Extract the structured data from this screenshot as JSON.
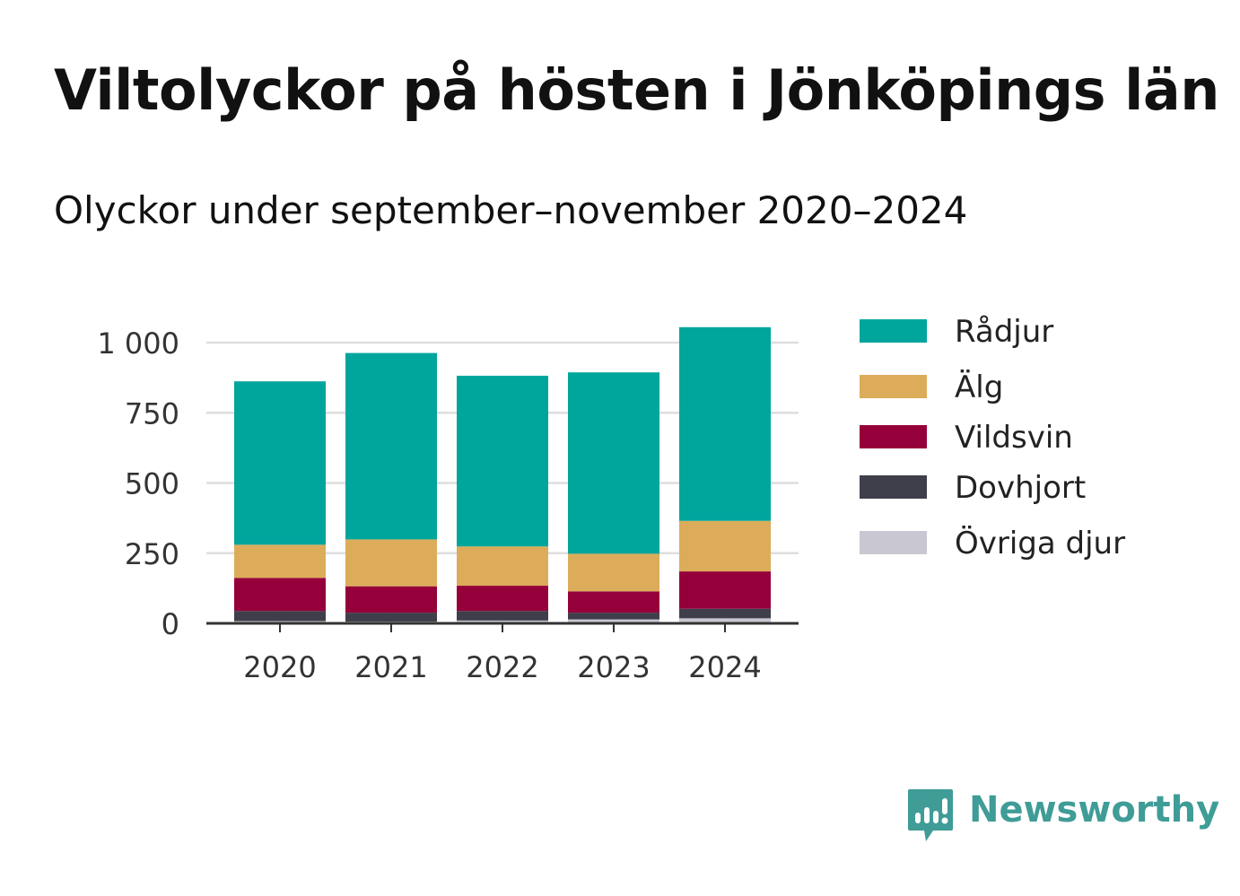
{
  "brand": {
    "name": "Newsworthy",
    "color": "#3f9c97"
  },
  "chart_data": {
    "type": "bar",
    "stacked": true,
    "title": "Viltolyckor på hösten i Jönköpings län",
    "subtitle": "Olyckor under september–november 2020–2024",
    "xlabel": "",
    "ylabel": "",
    "categories": [
      "2020",
      "2021",
      "2022",
      "2023",
      "2024"
    ],
    "ylim": [
      0,
      1000
    ],
    "yticks": [
      0,
      250,
      500,
      750,
      1000
    ],
    "ytick_labels": [
      "0",
      "250",
      "500",
      "750",
      "1 000"
    ],
    "grid": true,
    "legend_position": "right",
    "series": [
      {
        "name": "Övriga djur",
        "color": "#c8c7d2",
        "values": [
          8,
          6,
          10,
          14,
          18
        ]
      },
      {
        "name": "Dovhjort",
        "color": "#3f3f4b",
        "values": [
          36,
          32,
          34,
          24,
          34
        ]
      },
      {
        "name": "Vildsvin",
        "color": "#96003a",
        "values": [
          118,
          94,
          90,
          76,
          133
        ]
      },
      {
        "name": "Älg",
        "color": "#dcac5a",
        "values": [
          118,
          167,
          140,
          134,
          180
        ]
      },
      {
        "name": "Rådjur",
        "color": "#00a59c",
        "values": [
          582,
          664,
          608,
          646,
          690
        ]
      }
    ],
    "legend_order": [
      "Rådjur",
      "Älg",
      "Vildsvin",
      "Dovhjort",
      "Övriga djur"
    ]
  }
}
